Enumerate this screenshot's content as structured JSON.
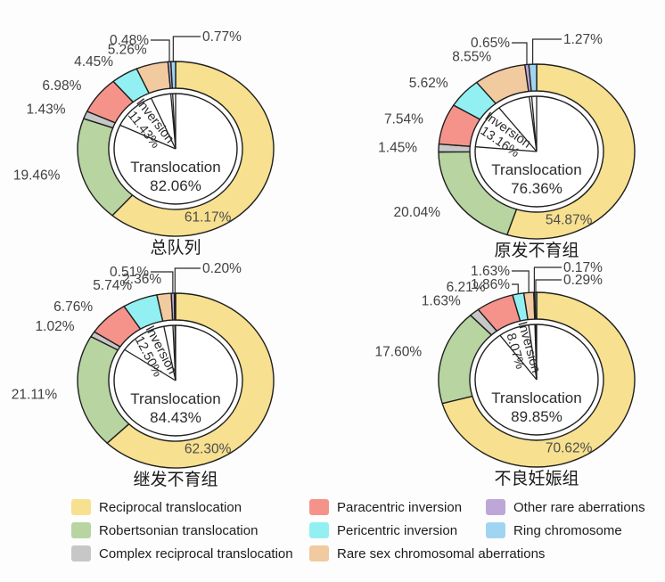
{
  "figure": {
    "background": "#fdfdfd"
  },
  "colors": {
    "segments": [
      "#F7E08F",
      "#B7D4A1",
      "#C7C7C7",
      "#F5938B",
      "#93F0F2",
      "#F1CA9F",
      "#BDA7D7",
      "#A0D5F2"
    ],
    "outline": "#1f1f1f",
    "percent_label": "#414141",
    "leader_line": "#2a2a2a",
    "title_text": "#1a1a1a",
    "inner_text": "#2b2b2b"
  },
  "chart_data": [
    {
      "type": "pie",
      "title": "总队列",
      "categories": [
        "Reciprocal translocation",
        "Robertsonian translocation",
        "Complex reciprocal translocation",
        "Paracentric inversion",
        "Pericentric inversion",
        "Rare sex chromosomal aberrations",
        "Other rare aberrations",
        "Ring chromosome"
      ],
      "values": [
        61.17,
        19.46,
        1.43,
        6.98,
        4.45,
        5.26,
        0.48,
        0.77
      ],
      "inner": {
        "label1": "Translocation",
        "value1": "82.06%",
        "label2": "Inversion",
        "value2": "11.43%"
      }
    },
    {
      "type": "pie",
      "title": "原发不育组",
      "categories": [
        "Reciprocal translocation",
        "Robertsonian translocation",
        "Complex reciprocal translocation",
        "Paracentric inversion",
        "Pericentric inversion",
        "Rare sex chromosomal aberrations",
        "Other rare aberrations",
        "Ring chromosome"
      ],
      "values": [
        54.87,
        20.04,
        1.45,
        7.54,
        5.62,
        8.55,
        0.65,
        1.27
      ],
      "inner": {
        "label1": "Translocation",
        "value1": "76.36%",
        "label2": "Inversion",
        "value2": "13.16%"
      }
    },
    {
      "type": "pie",
      "title": "继发不育组",
      "categories": [
        "Reciprocal translocation",
        "Robertsonian translocation",
        "Complex reciprocal translocation",
        "Paracentric inversion",
        "Pericentric inversion",
        "Rare sex chromosomal aberrations",
        "Other rare aberrations",
        "Ring chromosome"
      ],
      "values": [
        62.3,
        21.11,
        1.02,
        6.76,
        5.74,
        2.36,
        0.51,
        0.2
      ],
      "inner": {
        "label1": "Translocation",
        "value1": "84.43%",
        "label2": "Inversion",
        "value2": "12.50%"
      }
    },
    {
      "type": "pie",
      "title": "不良妊娠组",
      "categories": [
        "Reciprocal translocation",
        "Robertsonian translocation",
        "Complex reciprocal translocation",
        "Paracentric inversion",
        "Pericentric inversion",
        "Rare sex chromosomal aberrations",
        "Other rare aberrations",
        "Ring chromosome"
      ],
      "values": [
        70.62,
        17.6,
        1.63,
        6.21,
        1.86,
        1.63,
        0.17,
        0.29
      ],
      "inner": {
        "label1": "Translocation",
        "value1": "89.85%",
        "label2": "Inversion",
        "value2": "8.07%"
      }
    }
  ],
  "legend": {
    "columns": [
      [
        {
          "label": "Reciprocal translocation",
          "color": "#F7E08F"
        },
        {
          "label": "Robertsonian translocation",
          "color": "#B7D4A1"
        },
        {
          "label": "Complex reciprocal translocation",
          "color": "#C7C7C7"
        }
      ],
      [
        {
          "label": "Paracentric inversion",
          "color": "#F5938B"
        },
        {
          "label": "Pericentric inversion",
          "color": "#93F0F2"
        },
        {
          "label": "Rare sex chromosomal aberrations",
          "color": "#F1CA9F"
        }
      ],
      [
        {
          "label": "Other rare aberrations",
          "color": "#BDA7D7"
        },
        {
          "label": "Ring chromosome",
          "color": "#A0D5F2"
        }
      ]
    ]
  }
}
